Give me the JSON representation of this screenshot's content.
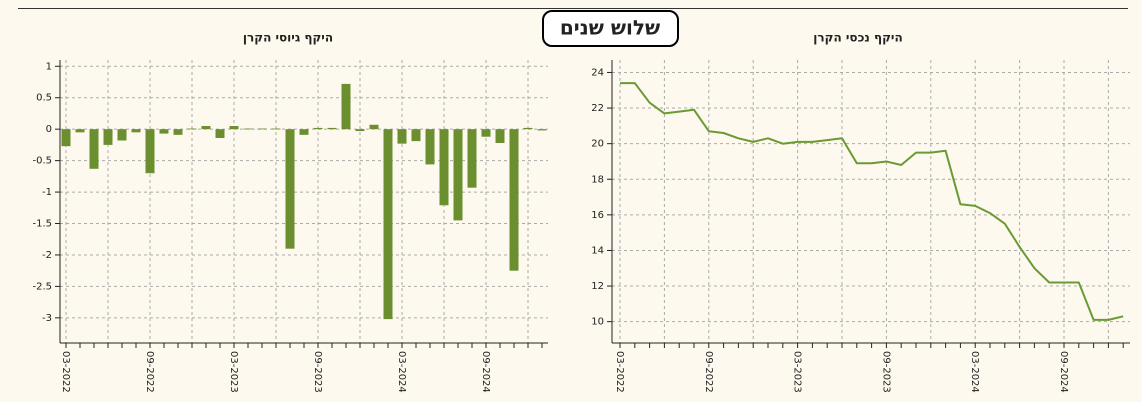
{
  "page_title": "שלוש שנים",
  "chart_data": [
    {
      "type": "bar",
      "title": "היקף גיוסי הקרן",
      "categories": [
        "03-2022",
        null,
        null,
        null,
        null,
        null,
        "09-2022",
        null,
        null,
        null,
        null,
        null,
        "03-2023",
        null,
        null,
        null,
        null,
        null,
        "09-2023",
        null,
        null,
        null,
        null,
        null,
        "03-2024",
        null,
        null,
        null,
        null,
        null,
        "09-2024",
        null,
        null,
        null,
        null
      ],
      "values": [
        -0.27,
        -0.05,
        -0.63,
        -0.25,
        -0.18,
        -0.05,
        -0.7,
        -0.07,
        -0.09,
        0.01,
        0.05,
        -0.14,
        0.05,
        0.01,
        0.01,
        0.01,
        -1.9,
        -0.09,
        0.02,
        0.02,
        0.72,
        -0.03,
        0.07,
        -3.02,
        -0.23,
        -0.19,
        -0.56,
        -1.21,
        -1.45,
        -0.93,
        -0.12,
        -0.22,
        -2.25,
        0.02,
        -0.02
      ],
      "color": "#6b8e2f",
      "ylim": [
        -3.4,
        1.1
      ],
      "yticks": [
        1,
        0.5,
        0,
        -0.5,
        -1,
        -1.5,
        -2,
        -2.5,
        -3
      ],
      "grid": true
    },
    {
      "type": "line",
      "title": "היקף נכסי הקרן",
      "categories": [
        "03-2022",
        null,
        null,
        null,
        null,
        null,
        "09-2022",
        null,
        null,
        null,
        null,
        null,
        "03-2023",
        null,
        null,
        null,
        null,
        null,
        "09-2023",
        null,
        null,
        null,
        null,
        null,
        "03-2024",
        null,
        null,
        null,
        null,
        null,
        "09-2024",
        null,
        null,
        null,
        null
      ],
      "values": [
        23.4,
        23.4,
        22.3,
        21.7,
        21.8,
        21.9,
        20.7,
        20.6,
        20.3,
        20.1,
        20.3,
        20.0,
        20.1,
        20.1,
        20.2,
        20.3,
        18.9,
        18.9,
        19.0,
        18.8,
        19.5,
        19.5,
        19.6,
        16.6,
        16.5,
        16.1,
        15.5,
        14.2,
        13.0,
        12.2,
        12.2,
        12.2,
        10.1,
        10.1,
        10.3
      ],
      "color": "#6b9a34",
      "ylim": [
        8.8,
        24.7
      ],
      "yticks": [
        24,
        22,
        20,
        18,
        16,
        14,
        12,
        10
      ],
      "grid": true
    }
  ]
}
